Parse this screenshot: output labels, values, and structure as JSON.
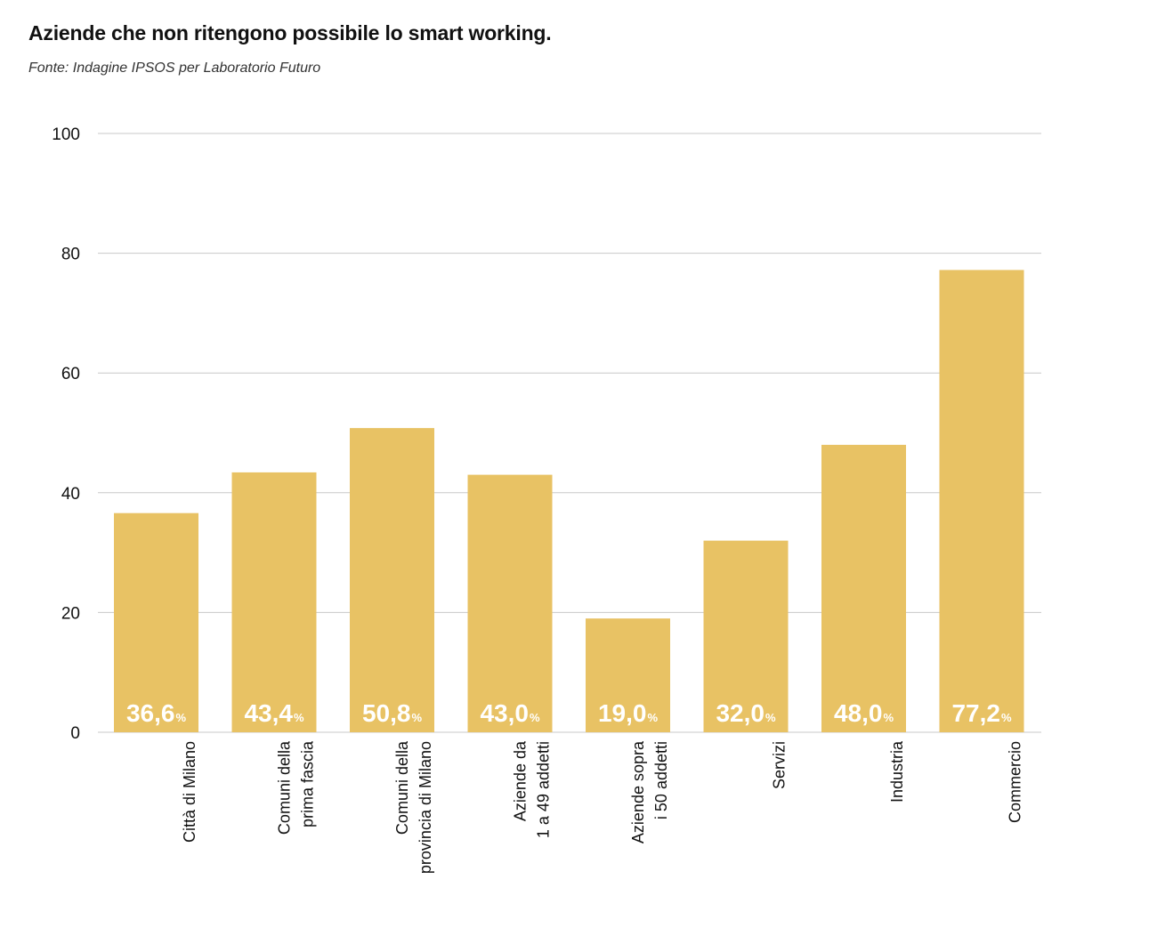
{
  "title": "Aziende che non ritengono possibile lo smart working.",
  "subtitle": "Fonte: Indagine IPSOS per Laboratorio Futuro",
  "colors": {
    "bar": "#E8C264",
    "grid": "#C8C8C8",
    "label": "#FFFFFF"
  },
  "chart_data": {
    "type": "bar",
    "categories": [
      [
        "Città di Milano"
      ],
      [
        "Comuni della",
        "prima fascia"
      ],
      [
        "Comuni della",
        "provincia di Milano"
      ],
      [
        "Aziende da",
        "1 a 49 addetti"
      ],
      [
        "Aziende sopra",
        "i 50 addetti"
      ],
      [
        "Servizi"
      ],
      [
        "Industria"
      ],
      [
        "Commercio"
      ]
    ],
    "values": [
      36.6,
      43.4,
      50.8,
      43.0,
      19.0,
      32.0,
      48.0,
      77.2
    ],
    "data_labels": [
      "36,6",
      "43,4",
      "50,8",
      "43,0",
      "19,0",
      "32,0",
      "48,0",
      "77,2"
    ],
    "data_label_unit": "%",
    "ylim": [
      0,
      100
    ],
    "yticks": [
      "0",
      "20",
      "40",
      "60",
      "80",
      "100"
    ],
    "grid": true
  }
}
